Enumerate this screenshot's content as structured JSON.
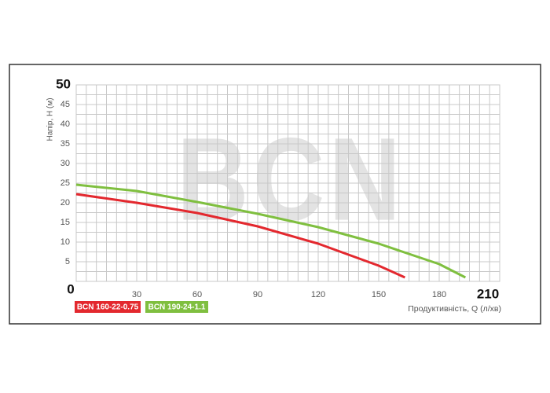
{
  "chart_data": {
    "type": "line",
    "watermark": "BCN",
    "x_label": "Продуктивність, Q (л/хв)",
    "y_label": "Напір, Н (м)",
    "x": [
      0,
      30,
      60,
      90,
      120,
      150,
      163
    ],
    "series": [
      {
        "name": "BCN 160-22-0.75",
        "color": "#e3282e",
        "x": [
          0,
          30,
          60,
          90,
          120,
          150,
          163
        ],
        "values": [
          22.2,
          20,
          17.4,
          14,
          9.6,
          4,
          1
        ]
      },
      {
        "name": "BCN 190-24-1.1",
        "color": "#7fbf3f",
        "x": [
          0,
          30,
          60,
          90,
          120,
          150,
          180,
          193
        ],
        "values": [
          24.6,
          23,
          20.2,
          17.2,
          13.8,
          9.6,
          4.4,
          1
        ]
      }
    ],
    "xlim": [
      0,
      210
    ],
    "ylim": [
      0,
      50
    ],
    "xticks": [
      0,
      30,
      60,
      90,
      120,
      150,
      180,
      210
    ],
    "yticks": [
      5,
      10,
      15,
      20,
      25,
      30,
      35,
      40,
      45,
      50
    ],
    "grid": true
  }
}
